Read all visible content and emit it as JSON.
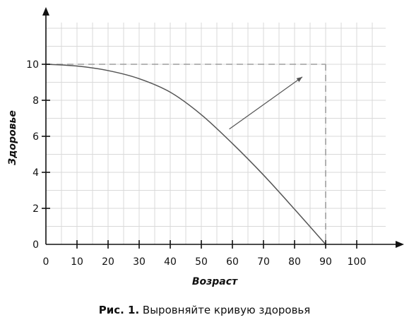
{
  "chart_data": {
    "type": "line",
    "xlabel": "Возраст",
    "ylabel": "Здоровье",
    "xlim": [
      0,
      110
    ],
    "ylim": [
      0,
      12.5
    ],
    "x_ticks": [
      0,
      10,
      20,
      30,
      40,
      50,
      60,
      70,
      80,
      90,
      100
    ],
    "y_ticks": [
      0,
      2,
      4,
      6,
      8,
      10
    ],
    "grid": true,
    "series": [
      {
        "x": [
          0,
          10,
          20,
          30,
          40,
          50,
          60,
          70,
          80,
          90
        ],
        "y": [
          10,
          9.9,
          9.65,
          9.2,
          8.45,
          7.2,
          5.6,
          3.85,
          1.95,
          0
        ]
      }
    ],
    "annotations": [
      {
        "type": "dashed-line",
        "from": [
          0,
          10
        ],
        "to": [
          90,
          10
        ]
      },
      {
        "type": "dashed-line",
        "from": [
          90,
          10
        ],
        "to": [
          90,
          0
        ]
      },
      {
        "type": "arrow",
        "from": [
          59,
          6.4
        ],
        "to": [
          82.5,
          9.3
        ]
      }
    ],
    "colors": {
      "curve": "#555555",
      "grid": "#d9d9d9",
      "dashed": "#9e9e9e",
      "axis": "#111111"
    }
  },
  "caption": {
    "prefix": "Рис. 1.",
    "text": " Выровняйте кривую здоровья"
  }
}
